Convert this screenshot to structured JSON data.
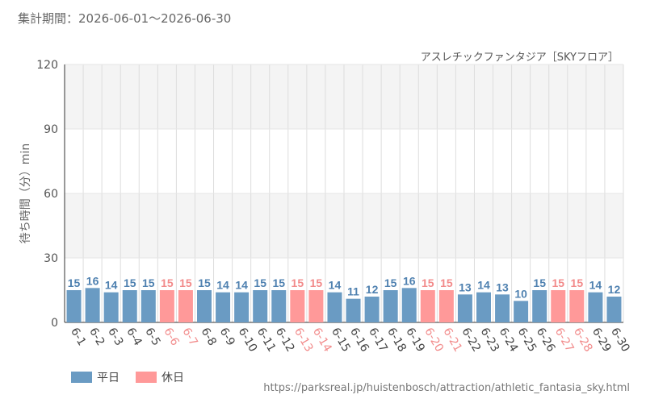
{
  "header": {
    "period_label": "集計期間：2026-06-01～2026-06-30",
    "attraction_name": "アスレチックファンタジア［SKYフロア］"
  },
  "legend": {
    "weekday": "平日",
    "holiday": "休日"
  },
  "footer": {
    "url": "https://parksreal.jp/huistenbosch/attraction/athletic_fantasia_sky.html"
  },
  "colors": {
    "weekday": "#6a9bc3",
    "holiday": "#ff9999",
    "weekday_text": "#4f81b0",
    "holiday_text": "#f28b8b",
    "band": "#f4f4f4",
    "grid": "#dddddd"
  },
  "chart_data": {
    "type": "bar",
    "title": "",
    "xlabel": "",
    "ylabel": "待ち時間（分）min",
    "ylim": [
      0,
      120
    ],
    "yticks": [
      0,
      30,
      60,
      90,
      120
    ],
    "grid": true,
    "legend_position": "bottom-left",
    "categories": [
      "6-1",
      "6-2",
      "6-3",
      "6-4",
      "6-5",
      "6-6",
      "6-7",
      "6-8",
      "6-9",
      "6-10",
      "6-11",
      "6-12",
      "6-13",
      "6-14",
      "6-15",
      "6-16",
      "6-17",
      "6-18",
      "6-19",
      "6-20",
      "6-21",
      "6-22",
      "6-23",
      "6-24",
      "6-25",
      "6-26",
      "6-27",
      "6-28",
      "6-29",
      "6-30"
    ],
    "values": [
      15,
      16,
      14,
      15,
      15,
      15,
      15,
      15,
      14,
      14,
      15,
      15,
      15,
      15,
      14,
      11,
      12,
      15,
      16,
      15,
      15,
      13,
      14,
      13,
      10,
      15,
      15,
      15,
      14,
      12
    ],
    "day_type": [
      "weekday",
      "weekday",
      "weekday",
      "weekday",
      "weekday",
      "holiday",
      "holiday",
      "weekday",
      "weekday",
      "weekday",
      "weekday",
      "weekday",
      "holiday",
      "holiday",
      "weekday",
      "weekday",
      "weekday",
      "weekday",
      "weekday",
      "holiday",
      "holiday",
      "weekday",
      "weekday",
      "weekday",
      "weekday",
      "weekday",
      "holiday",
      "holiday",
      "weekday",
      "weekday"
    ]
  }
}
